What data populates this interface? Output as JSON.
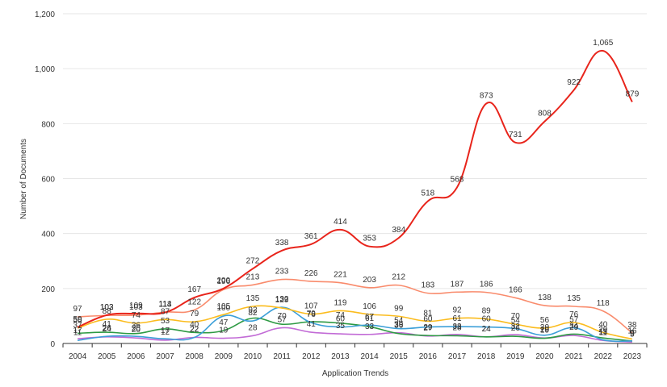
{
  "chart_data": {
    "type": "line",
    "xlabel": "Application Trends",
    "ylabel": "Number of Documents",
    "ylim": [
      0,
      1200
    ],
    "yticks": [
      0,
      200,
      400,
      600,
      800,
      1000,
      1200
    ],
    "ytick_labels": [
      "0",
      "200",
      "400",
      "600",
      "800",
      "1,000",
      "1,200"
    ],
    "grid": "horizontal",
    "legend": "none",
    "x": [
      "2004",
      "2005",
      "2006",
      "2007",
      "2008",
      "2009",
      "2010",
      "2011",
      "2012",
      "2013",
      "2014",
      "2015",
      "2016",
      "2017",
      "2018",
      "2019",
      "2020",
      "2021",
      "2022",
      "2023"
    ],
    "series": [
      {
        "color": "#e8241b",
        "values": [
          59,
          103,
          109,
          113,
          167,
          200,
          272,
          338,
          361,
          414,
          353,
          384,
          518,
          568,
          873,
          731,
          808,
          922,
          1065,
          879
        ],
        "labels": [
          "59",
          "103",
          "109",
          "113",
          "167",
          "200",
          "272",
          "338",
          "361",
          "414",
          "353",
          "384",
          "518",
          "568",
          "873",
          "731",
          "808",
          "922",
          "1,065",
          "879"
        ]
      },
      {
        "color": "#f98b6c",
        "values": [
          97,
          102,
          103,
          114,
          122,
          196,
          213,
          233,
          226,
          221,
          203,
          212,
          183,
          187,
          186,
          166,
          138,
          135,
          118,
          38
        ],
        "labels": [
          "97",
          "102",
          "103",
          "114",
          "122",
          "196",
          "213",
          "233",
          "226",
          "221",
          "203",
          "212",
          "183",
          "187",
          "186",
          "166",
          "138",
          "135",
          "118",
          "38"
        ]
      },
      {
        "color": "#fbbc1e",
        "values": [
          56,
          88,
          74,
          87,
          79,
          105,
          135,
          129,
          107,
          119,
          106,
          99,
          81,
          92,
          89,
          70,
          56,
          76,
          40,
          16
        ],
        "labels": [
          "56",
          "88",
          "74",
          "87",
          "79",
          "105",
          "135",
          "129",
          "107",
          "119",
          "106",
          "99",
          "81",
          "92",
          "89",
          "70",
          "56",
          "76",
          "40",
          "16"
        ]
      },
      {
        "color": "#3c9fd8",
        "values": [
          11,
          26,
          26,
          17,
          22,
          100,
          82,
          132,
          76,
          60,
          67,
          54,
          60,
          61,
          60,
          54,
          30,
          57,
          13,
          9
        ],
        "labels": [
          "11",
          "26",
          "26",
          "17",
          "22",
          "100",
          "82",
          "132",
          "76",
          "60",
          "67",
          "54",
          "60",
          "61",
          "60",
          "54",
          "30",
          "57",
          "13",
          "9"
        ]
      },
      {
        "color": "#2e9a44",
        "values": [
          37,
          41,
          36,
          53,
          40,
          47,
          92,
          70,
          79,
          74,
          61,
          36,
          29,
          28,
          24,
          26,
          19,
          34,
          20,
          9
        ],
        "labels": [
          "37",
          "41",
          "36",
          "53",
          "40",
          "47",
          "92",
          "70",
          "79",
          "74",
          "61",
          "36",
          "29",
          "28",
          "24",
          "26",
          "19",
          "34",
          "20",
          "9"
        ]
      },
      {
        "color": "#c26bd6",
        "values": [
          17,
          24,
          20,
          12,
          22,
          19,
          28,
          57,
          41,
          35,
          33,
          39,
          27,
          33,
          24,
          32,
          20,
          29,
          11,
          5
        ],
        "labels": [
          "17",
          "24",
          "20",
          "12",
          "22",
          "19",
          "28",
          "57",
          "41",
          "35",
          "33",
          "39",
          "27",
          "33",
          "24",
          "32",
          "20",
          "29",
          "11",
          "5"
        ]
      }
    ]
  }
}
